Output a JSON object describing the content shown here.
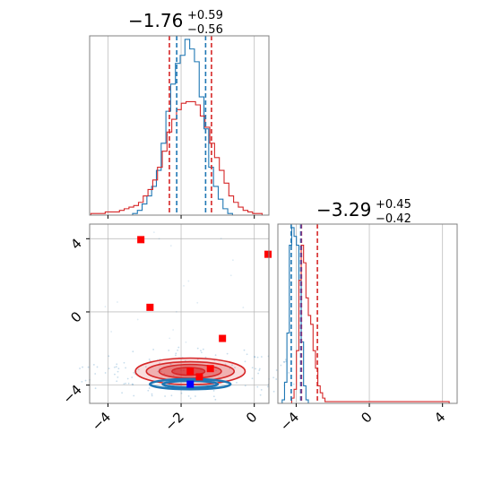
{
  "colors": {
    "red": "#d62728",
    "blue": "#1f77b4",
    "marker_red": "#ff0000",
    "marker_blue": "#0000ff",
    "grid": "#b0b0b0"
  },
  "chart_data": [
    {
      "type": "histogram",
      "panel": "marginal-param1",
      "title": {
        "main": "−1.76",
        "sup": "+0.59",
        "sub": "−0.56"
      },
      "xlim": [
        -4.5,
        0.4
      ],
      "bin_width": 0.13,
      "quantile_lines": {
        "red": [
          -2.32,
          -1.17
        ],
        "blue": [
          -2.12,
          -1.33
        ]
      },
      "series": [
        {
          "color": "blue",
          "x": [
            -3.26,
            -3.13,
            -3.0,
            -2.87,
            -2.74,
            -2.61,
            -2.48,
            -2.35,
            -2.22,
            -2.09,
            -1.96,
            -1.83,
            -1.7,
            -1.57,
            -1.44,
            -1.31,
            -1.18,
            -1.05,
            -0.92,
            -0.79,
            -0.66
          ],
          "counts": [
            1,
            3,
            7,
            12,
            18,
            28,
            45,
            65,
            82,
            95,
            100,
            110,
            104,
            96,
            74,
            54,
            30,
            18,
            10,
            4,
            1
          ]
        },
        {
          "color": "red",
          "x": [
            -4.4,
            -4.27,
            -4.14,
            -4.01,
            -3.88,
            -3.75,
            -3.62,
            -3.49,
            -3.36,
            -3.23,
            -3.1,
            -2.97,
            -2.84,
            -2.71,
            -2.58,
            -2.45,
            -2.32,
            -2.19,
            -2.06,
            -1.93,
            -1.8,
            -1.67,
            -1.54,
            -1.41,
            -1.28,
            -1.15,
            -1.02,
            -0.89,
            -0.76,
            -0.63,
            -0.5,
            -0.37,
            -0.24,
            -0.11,
            0.02,
            0.15
          ],
          "counts": [
            1,
            1,
            1,
            2,
            2,
            2,
            3,
            4,
            5,
            6,
            8,
            12,
            16,
            22,
            30,
            40,
            52,
            60,
            66,
            70,
            71,
            71,
            69,
            62,
            55,
            45,
            36,
            28,
            20,
            12,
            8,
            5,
            3,
            2,
            1,
            1
          ]
        }
      ]
    },
    {
      "type": "histogram",
      "panel": "marginal-param2",
      "title": {
        "main": "−3.29",
        "sup": "+0.45",
        "sub": "−0.42"
      },
      "xlim": [
        -5.0,
        4.8
      ],
      "bin_width": 0.13,
      "tick_labels": [
        "−4",
        "0",
        "4"
      ],
      "ticks": [
        -4,
        0,
        4
      ],
      "quantile_lines": {
        "red": [
          -3.71,
          -2.84
        ],
        "blue": [
          -4.27,
          -3.75
        ],
        "purple": [
          -3.72
        ]
      },
      "series": [
        {
          "color": "blue",
          "x": [
            -4.7,
            -4.57,
            -4.44,
            -4.31,
            -4.18,
            -4.05,
            -3.92,
            -3.79,
            -3.66,
            -3.53,
            -3.4
          ],
          "counts": [
            2,
            12,
            40,
            90,
            100,
            95,
            90,
            70,
            35,
            10,
            2
          ]
        },
        {
          "color": "red",
          "x": [
            -4.18,
            -4.05,
            -3.92,
            -3.79,
            -3.66,
            -3.53,
            -3.4,
            -3.27,
            -3.14,
            -3.01,
            -2.88,
            -2.75,
            -2.62,
            -2.49,
            -2.36,
            0.5,
            4.3
          ],
          "counts": [
            3,
            8,
            30,
            70,
            90,
            80,
            60,
            50,
            45,
            30,
            20,
            10,
            6,
            3,
            1,
            1,
            1
          ]
        }
      ]
    },
    {
      "type": "scatter",
      "panel": "joint",
      "xlim": [
        -4.5,
        0.4
      ],
      "ylim": [
        -5.0,
        4.8
      ],
      "xticks": [
        -4,
        -2,
        0
      ],
      "xtick_labels": [
        "−4",
        "−2",
        "0"
      ],
      "yticks": [
        -4,
        0,
        4
      ],
      "ytick_labels": [
        "−4",
        "0",
        "4"
      ],
      "red_markers": [
        {
          "x": -3.1,
          "y": 3.95
        },
        {
          "x": -2.85,
          "y": 0.25
        },
        {
          "x": -0.87,
          "y": -1.45
        },
        {
          "x": 0.4,
          "y": 3.15
        },
        {
          "x": -1.75,
          "y": -3.25
        },
        {
          "x": -1.2,
          "y": -3.1
        },
        {
          "x": -1.5,
          "y": -3.55
        }
      ],
      "blue_markers": [
        {
          "x": -1.75,
          "y": -3.95
        }
      ],
      "red_contours": [
        {
          "center": [
            -1.75,
            -3.25
          ],
          "rx": 3.0,
          "ry": 1.45,
          "level": "outer"
        },
        {
          "center": [
            -1.75,
            -3.25
          ],
          "rx": 2.4,
          "ry": 1.05,
          "level": "mid"
        },
        {
          "center": [
            -1.75,
            -3.25
          ],
          "rx": 1.7,
          "ry": 0.75,
          "level": "inner"
        },
        {
          "center": [
            -1.8,
            -3.25
          ],
          "rx": 0.9,
          "ry": 0.42,
          "level": "core"
        }
      ],
      "blue_contours": [
        {
          "center": [
            -1.75,
            -3.95
          ],
          "rx": 2.2,
          "ry": 0.55,
          "level": "outer"
        },
        {
          "center": [
            -1.75,
            -3.95
          ],
          "rx": 1.5,
          "ry": 0.35,
          "level": "inner"
        }
      ]
    }
  ]
}
